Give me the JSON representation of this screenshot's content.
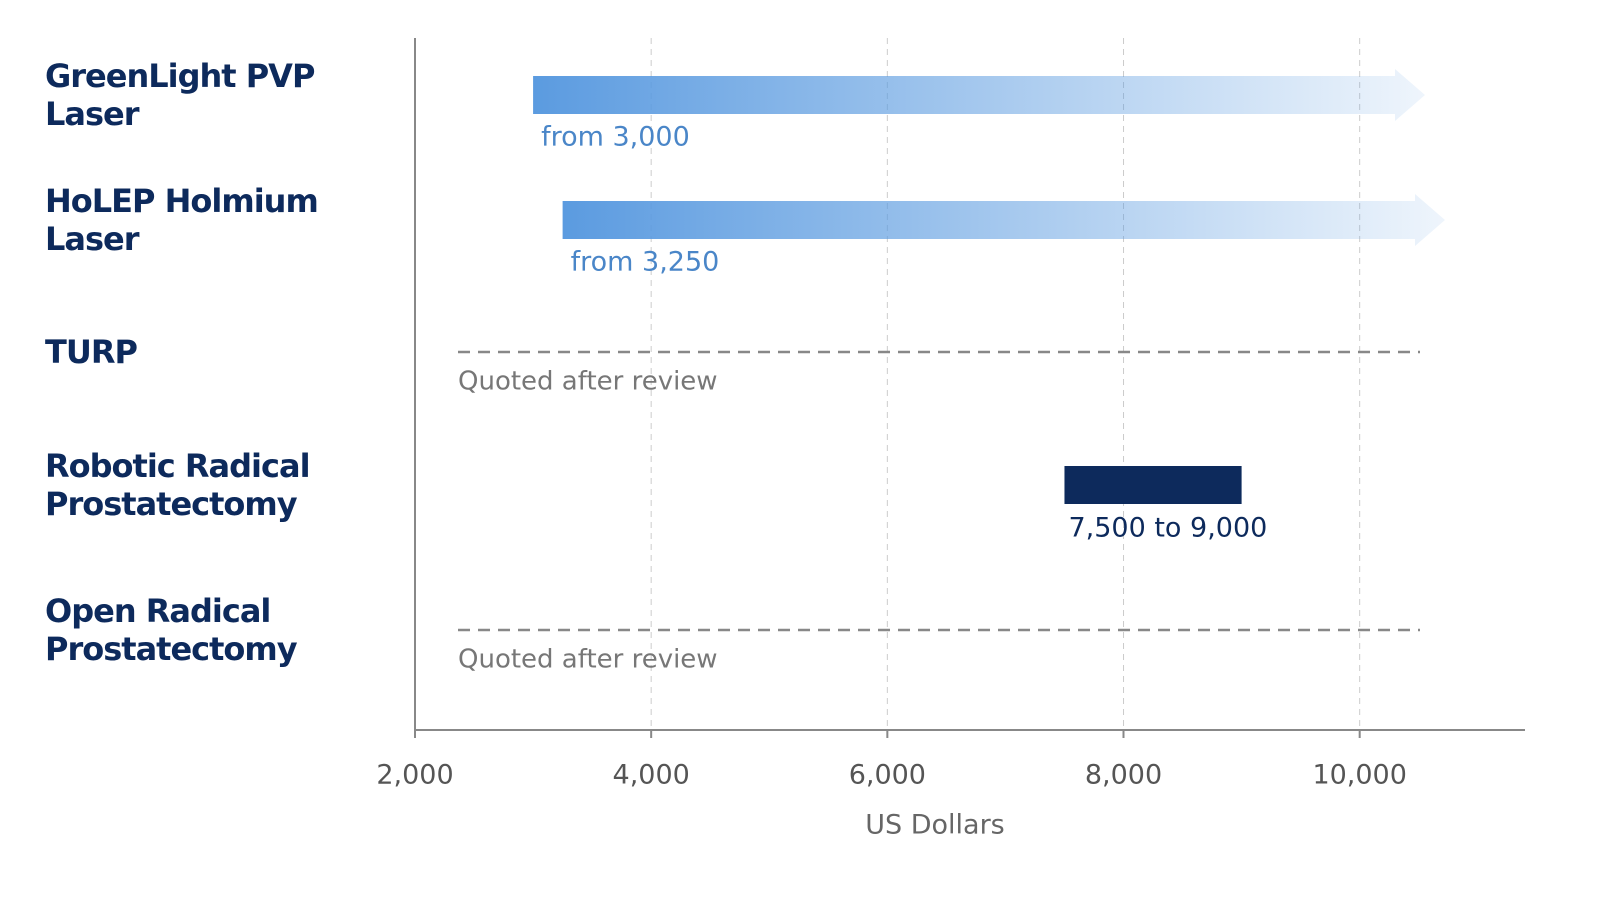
{
  "chart_data": {
    "type": "range_bar",
    "categories": [
      "GreenLight PVP Laser",
      "HoLEP Holmium Laser",
      "TURP",
      "Robotic Radical Prostatectomy",
      "Open Radical Prostatectomy"
    ],
    "low": [
      3000,
      3250,
      null,
      7500,
      null
    ],
    "high": [
      null,
      null,
      null,
      9000,
      null
    ],
    "value_labels": [
      "from 3,000",
      "from 3,250",
      "Quoted after review",
      "7,500 to 9,000",
      "Quoted after review"
    ],
    "xlabel": "US Dollars",
    "xlim": [
      2000,
      11400
    ],
    "xticks": [
      {
        "value": 2000,
        "label": "2,000"
      },
      {
        "value": 4000,
        "label": "4,000"
      },
      {
        "value": 6000,
        "label": "6,000"
      },
      {
        "value": 8000,
        "label": "8,000"
      },
      {
        "value": 10000,
        "label": "10,000"
      }
    ],
    "grid": true,
    "open_color": "#5b9be0",
    "bar_color": "#0d2a5c"
  }
}
